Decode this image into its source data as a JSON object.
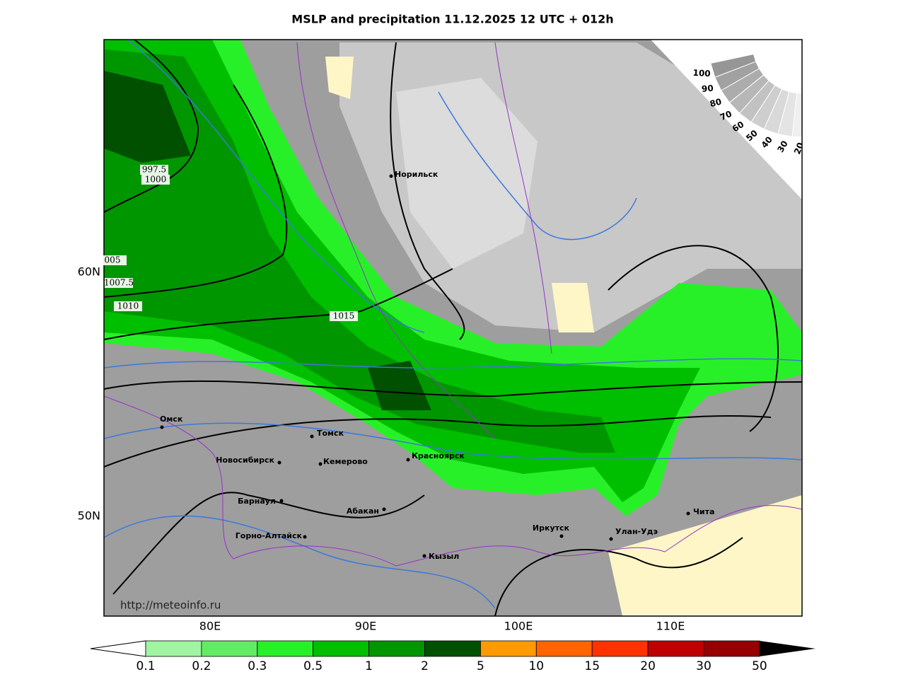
{
  "title": "MSLP and precipitation 11.12.2025 12 UTC + 012h",
  "lat_labels": [
    "60N",
    "50N"
  ],
  "lon_labels": [
    "80E",
    "90E",
    "100E",
    "110E"
  ],
  "cities": [
    "Норильск",
    "Омск",
    "Томск",
    "Новосибирск",
    "Кемерово",
    "Красноярск",
    "Барнаул",
    "Абакан",
    "Горно-Алтайск",
    "Кызыл",
    "Иркутск",
    "Улан-Удэ",
    "Чита"
  ],
  "isobar_labels": [
    "997.5",
    "1000",
    "005",
    "1007.5",
    "1010",
    "1015"
  ],
  "cloud_legend": [
    100,
    90,
    80,
    70,
    60,
    50,
    40,
    30,
    20
  ],
  "url": "http://meteoinfo.ru",
  "colorbar": {
    "ticks": [
      0.1,
      0.2,
      0.3,
      0.5,
      1,
      2,
      5,
      10,
      15,
      20,
      30,
      50
    ],
    "colors": [
      "#a0f5a0",
      "#64eb64",
      "#28f028",
      "#00be00",
      "#009600",
      "#005000",
      "#ff9b00",
      "#ff6400",
      "#ff3200",
      "#c00000",
      "#960000"
    ]
  }
}
